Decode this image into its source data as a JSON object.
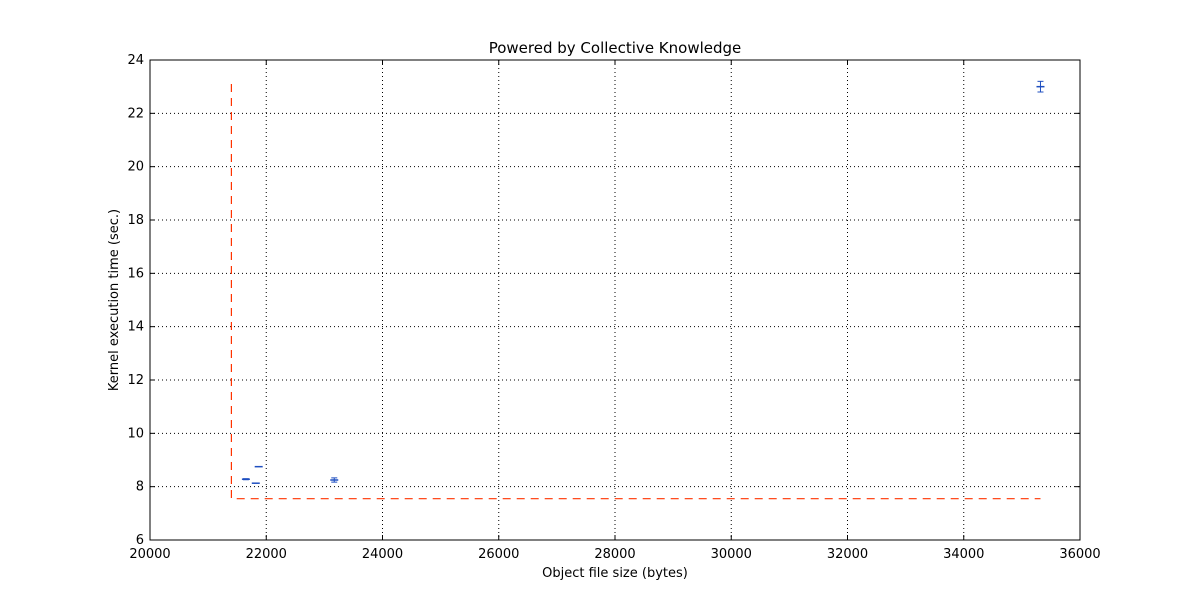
{
  "chart_data": {
    "type": "scatter",
    "title": "Powered by Collective Knowledge",
    "xlabel": "Object file size (bytes)",
    "ylabel": "Kernel execution time (sec.)",
    "xlim": [
      20000,
      36000
    ],
    "ylim": [
      6,
      24
    ],
    "xticks": [
      20000,
      22000,
      24000,
      26000,
      28000,
      30000,
      32000,
      34000,
      36000
    ],
    "yticks": [
      6,
      8,
      10,
      12,
      14,
      16,
      18,
      20,
      22,
      24
    ],
    "grid": true,
    "colors": {
      "points": "#1f4fc0",
      "frontier": "#ff3300",
      "grid": "#000000"
    },
    "points": [
      {
        "x": 21650,
        "y": 8.28,
        "err": 0.02
      },
      {
        "x": 21820,
        "y": 8.13,
        "err": 0.0
      },
      {
        "x": 21870,
        "y": 8.75,
        "err": 0.0
      },
      {
        "x": 23170,
        "y": 8.25,
        "err": 0.08
      },
      {
        "x": 35320,
        "y": 23.0,
        "err": 0.2
      }
    ],
    "frontier": [
      {
        "x": 21400,
        "y": 23.1
      },
      {
        "x": 21400,
        "y": 7.55
      },
      {
        "x": 35320,
        "y": 7.55
      }
    ]
  }
}
